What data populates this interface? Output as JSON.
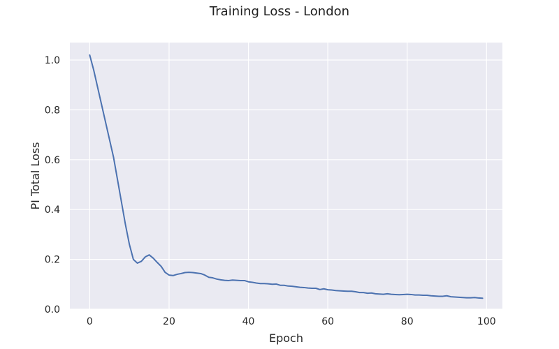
{
  "chart_data": {
    "type": "line",
    "title": "Training Loss - London",
    "xlabel": "Epoch",
    "ylabel": "PI Total Loss",
    "xlim": [
      -5,
      104
    ],
    "ylim": [
      0,
      1.07
    ],
    "xticks": [
      0,
      20,
      40,
      60,
      80,
      100
    ],
    "yticks": [
      0.0,
      0.2,
      0.4,
      0.6,
      0.8,
      1.0
    ],
    "xtick_labels": [
      "0",
      "20",
      "40",
      "60",
      "80",
      "100"
    ],
    "ytick_labels": [
      "0.0",
      "0.2",
      "0.4",
      "0.6",
      "0.8",
      "1.0"
    ],
    "grid": true,
    "background": "#eaeaf2",
    "grid_color": "#ffffff",
    "series": [
      {
        "color": "#4c72b0",
        "x": [
          0,
          1,
          2,
          3,
          4,
          5,
          6,
          7,
          8,
          9,
          10,
          11,
          12,
          13,
          14,
          15,
          16,
          17,
          18,
          19,
          20,
          21,
          22,
          23,
          24,
          25,
          26,
          27,
          28,
          29,
          30,
          31,
          32,
          33,
          34,
          35,
          36,
          37,
          38,
          39,
          40,
          41,
          42,
          43,
          44,
          45,
          46,
          47,
          48,
          49,
          50,
          51,
          52,
          53,
          54,
          55,
          56,
          57,
          58,
          59,
          60,
          61,
          62,
          63,
          64,
          65,
          66,
          67,
          68,
          69,
          70,
          71,
          72,
          73,
          74,
          75,
          76,
          77,
          78,
          79,
          80,
          81,
          82,
          83,
          84,
          85,
          86,
          87,
          88,
          89,
          90,
          91,
          92,
          93,
          94,
          95,
          96,
          97,
          98,
          99
        ],
        "y": [
          1.02,
          0.96,
          0.89,
          0.82,
          0.75,
          0.68,
          0.61,
          0.52,
          0.43,
          0.34,
          0.26,
          0.2,
          0.185,
          0.192,
          0.21,
          0.218,
          0.205,
          0.188,
          0.172,
          0.148,
          0.137,
          0.135,
          0.14,
          0.143,
          0.147,
          0.148,
          0.147,
          0.145,
          0.143,
          0.137,
          0.128,
          0.126,
          0.121,
          0.118,
          0.116,
          0.115,
          0.117,
          0.116,
          0.115,
          0.115,
          0.11,
          0.108,
          0.105,
          0.103,
          0.103,
          0.102,
          0.1,
          0.101,
          0.096,
          0.096,
          0.093,
          0.092,
          0.09,
          0.088,
          0.087,
          0.085,
          0.084,
          0.084,
          0.079,
          0.082,
          0.078,
          0.077,
          0.075,
          0.074,
          0.073,
          0.072,
          0.072,
          0.07,
          0.067,
          0.067,
          0.064,
          0.065,
          0.062,
          0.061,
          0.06,
          0.062,
          0.06,
          0.059,
          0.058,
          0.059,
          0.06,
          0.059,
          0.057,
          0.057,
          0.056,
          0.056,
          0.054,
          0.053,
          0.052,
          0.052,
          0.054,
          0.05,
          0.049,
          0.048,
          0.047,
          0.046,
          0.046,
          0.047,
          0.045,
          0.044
        ]
      }
    ]
  }
}
